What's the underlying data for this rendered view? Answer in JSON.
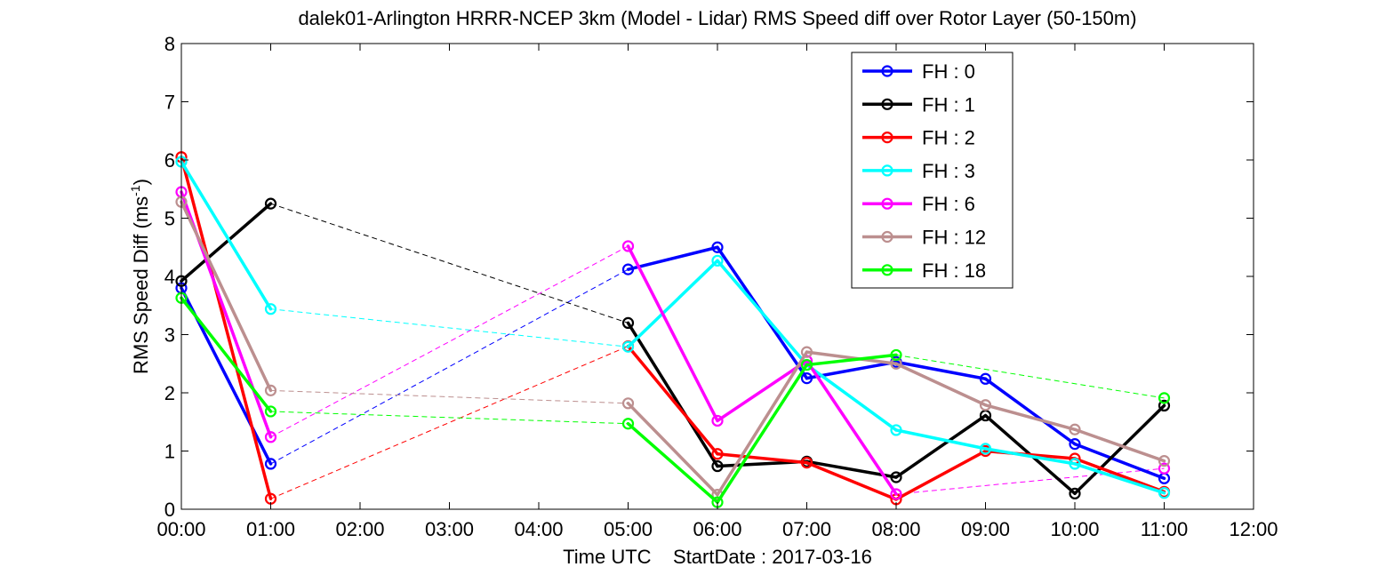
{
  "chart_data": {
    "type": "line",
    "title": "dalek01-Arlington HRRR-NCEP 3km (Model - Lidar) RMS Speed diff over Rotor Layer (50-150m)",
    "xlabel": "Time UTC    StartDate : 2017-03-16",
    "ylabel_main": "RMS Speed Diff (ms",
    "ylabel_sup": "-1",
    "ylabel_close": ")",
    "xlim": [
      0,
      12
    ],
    "ylim": [
      0,
      8
    ],
    "x_ticks": [
      {
        "v": 0,
        "label": "00:00"
      },
      {
        "v": 1,
        "label": "01:00"
      },
      {
        "v": 2,
        "label": "02:00"
      },
      {
        "v": 3,
        "label": "03:00"
      },
      {
        "v": 4,
        "label": "04:00"
      },
      {
        "v": 5,
        "label": "05:00"
      },
      {
        "v": 6,
        "label": "06:00"
      },
      {
        "v": 7,
        "label": "07:00"
      },
      {
        "v": 8,
        "label": "08:00"
      },
      {
        "v": 9,
        "label": "09:00"
      },
      {
        "v": 10,
        "label": "10:00"
      },
      {
        "v": 11,
        "label": "11:00"
      },
      {
        "v": 12,
        "label": "12:00"
      }
    ],
    "y_ticks": [
      {
        "v": 0,
        "label": "0"
      },
      {
        "v": 1,
        "label": "1"
      },
      {
        "v": 2,
        "label": "2"
      },
      {
        "v": 3,
        "label": "3"
      },
      {
        "v": 4,
        "label": "4"
      },
      {
        "v": 5,
        "label": "5"
      },
      {
        "v": 6,
        "label": "6"
      },
      {
        "v": 7,
        "label": "7"
      },
      {
        "v": 8,
        "label": "8"
      }
    ],
    "grid": false,
    "legend_position": "top-right",
    "x": [
      0,
      1,
      5,
      6,
      7,
      8,
      9,
      10,
      11
    ],
    "series": [
      {
        "name": "FH : 0",
        "color": "#0000ff",
        "values": [
          3.8,
          0.78,
          4.12,
          4.5,
          2.25,
          2.53,
          2.24,
          1.12,
          0.53
        ]
      },
      {
        "name": "FH : 1",
        "color": "#000000",
        "values": [
          3.92,
          5.25,
          3.2,
          0.74,
          0.82,
          0.55,
          1.61,
          0.27,
          1.78
        ]
      },
      {
        "name": "FH : 2",
        "color": "#ff0000",
        "values": [
          6.05,
          0.18,
          2.8,
          0.95,
          0.8,
          0.17,
          1.0,
          0.87,
          0.3
        ]
      },
      {
        "name": "FH : 3",
        "color": "#00ffff",
        "values": [
          5.97,
          3.44,
          2.79,
          4.27,
          2.48,
          1.36,
          1.04,
          0.78,
          0.28
        ]
      },
      {
        "name": "FH : 6",
        "color": "#ff00ff",
        "values": [
          5.45,
          1.24,
          4.52,
          1.52,
          2.55,
          0.26,
          null,
          null,
          0.7
        ]
      },
      {
        "name": "FH : 12",
        "color": "#bc8f8f",
        "values": [
          5.28,
          2.04,
          1.82,
          0.25,
          2.7,
          2.5,
          1.79,
          1.37,
          0.83
        ]
      },
      {
        "name": "FH : 18",
        "color": "#00ff00",
        "values": [
          3.63,
          1.68,
          1.47,
          0.12,
          2.48,
          2.65,
          null,
          null,
          1.91
        ]
      }
    ]
  }
}
